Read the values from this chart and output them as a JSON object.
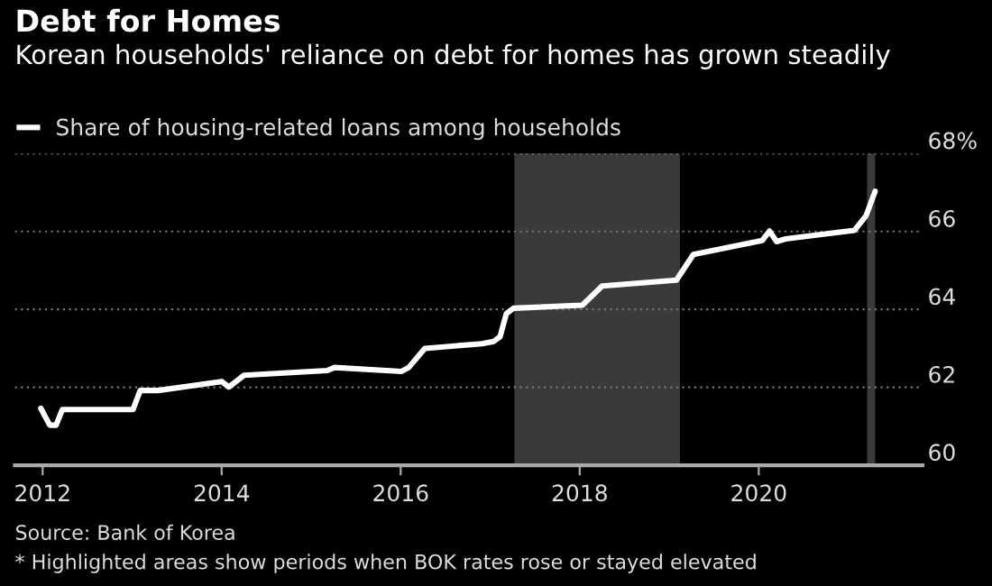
{
  "chart_data": {
    "type": "line",
    "title": "Debt for Homes",
    "subtitle": "Korean households' reliance on debt for homes has grown steadily",
    "series": [
      {
        "name": "Share of housing-related loans among households",
        "color": "#ffffff",
        "x": [
          2011.98,
          2012.08,
          2012.15,
          2012.22,
          2013.01,
          2013.09,
          2013.29,
          2014.0,
          2014.08,
          2014.25,
          2015.18,
          2015.26,
          2016.01,
          2016.09,
          2016.27,
          2016.91,
          2017.04,
          2017.11,
          2017.18,
          2017.26,
          2018.03,
          2018.25,
          2019.08,
          2019.27,
          2020.04,
          2020.12,
          2020.2,
          2020.3,
          2021.07,
          2021.2,
          2021.3
        ],
        "values": [
          61.46,
          61.03,
          61.03,
          61.43,
          61.43,
          61.92,
          61.92,
          62.15,
          62.01,
          62.31,
          62.43,
          62.51,
          62.41,
          62.51,
          63.0,
          63.12,
          63.18,
          63.3,
          63.89,
          64.03,
          64.11,
          64.6,
          64.75,
          65.41,
          65.77,
          66.01,
          65.74,
          65.81,
          66.03,
          66.41,
          67.03
        ]
      }
    ],
    "xlim": [
      2011.69,
      2021.83
    ],
    "xticks": [
      2012,
      2014,
      2016,
      2018,
      2020
    ],
    "ylim": [
      60,
      68
    ],
    "yticks": [
      60,
      62,
      64,
      66,
      {
        "value": 68,
        "label": "68%"
      }
    ],
    "bands": [
      {
        "axis": "x",
        "from": 2017.27,
        "to": 2019.12,
        "color": "#3a3a3a"
      },
      {
        "axis": "x",
        "from": 2021.21,
        "to": 2021.3,
        "color": "#3a3a3a"
      }
    ],
    "grid": "y",
    "legend": "top left",
    "line_style": "solid",
    "marker": "none",
    "annotations": [
      "Source: Bank of Korea",
      "* Highlighted areas show periods when BOK rates rose or stayed elevated"
    ]
  }
}
